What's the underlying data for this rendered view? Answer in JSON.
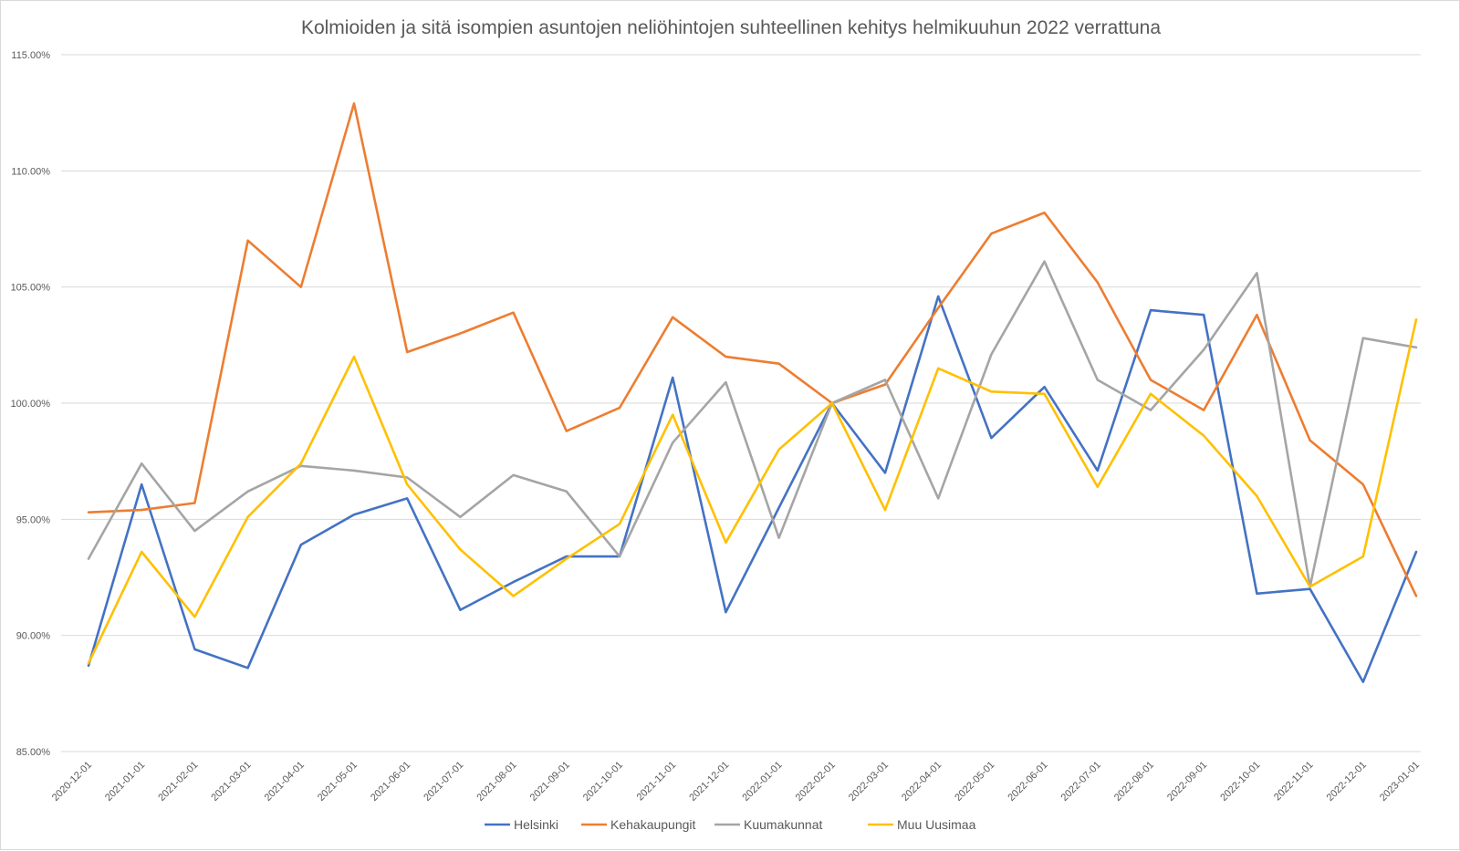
{
  "chart_data": {
    "type": "line",
    "title": "Kolmioiden ja sitä isompien asuntojen neliöhintojen suhteellinen kehitys helmikuuhun 2022 verrattuna",
    "xlabel": "",
    "ylabel": "",
    "ylim": [
      85,
      115
    ],
    "yticks": [
      "85.00%",
      "90.00%",
      "95.00%",
      "100.00%",
      "105.00%",
      "110.00%",
      "115.00%"
    ],
    "ytick_values": [
      85,
      90,
      95,
      100,
      105,
      110,
      115
    ],
    "grid": "horizontal",
    "legend_position": "bottom",
    "categories": [
      "2020-12-01",
      "2021-01-01",
      "2021-02-01",
      "2021-03-01",
      "2021-04-01",
      "2021-05-01",
      "2021-06-01",
      "2021-07-01",
      "2021-08-01",
      "2021-09-01",
      "2021-10-01",
      "2021-11-01",
      "2021-12-01",
      "2022-01-01",
      "2022-02-01",
      "2022-03-01",
      "2022-04-01",
      "2022-05-01",
      "2022-06-01",
      "2022-07-01",
      "2022-08-01",
      "2022-09-01",
      "2022-10-01",
      "2022-11-01",
      "2022-12-01",
      "2023-01-01"
    ],
    "series": [
      {
        "name": "Helsinki",
        "color": "#4472c4",
        "values": [
          88.7,
          96.5,
          89.4,
          88.6,
          93.9,
          95.2,
          95.9,
          91.1,
          92.3,
          93.4,
          93.4,
          101.1,
          91.0,
          95.5,
          100.0,
          97.0,
          104.6,
          98.5,
          100.7,
          97.1,
          104.0,
          103.8,
          91.8,
          92.0,
          88.0,
          93.6
        ]
      },
      {
        "name": "Kehakaupungit",
        "color": "#ed7d31",
        "values": [
          95.3,
          95.4,
          95.7,
          107.0,
          105.0,
          112.9,
          102.2,
          103.0,
          103.9,
          98.8,
          99.8,
          103.7,
          102.0,
          101.7,
          100.0,
          100.8,
          104.1,
          107.3,
          108.2,
          105.2,
          101.0,
          99.7,
          103.8,
          98.4,
          96.5,
          91.7
        ]
      },
      {
        "name": "Kuumakunnat",
        "color": "#a5a5a5",
        "values": [
          93.3,
          97.4,
          94.5,
          96.2,
          97.3,
          97.1,
          96.8,
          95.1,
          96.9,
          96.2,
          93.4,
          98.3,
          100.9,
          94.2,
          100.0,
          101.0,
          95.9,
          102.1,
          106.1,
          101.0,
          99.7,
          102.3,
          105.6,
          92.1,
          102.8,
          102.4
        ]
      },
      {
        "name": "Muu Uusimaa",
        "color": "#ffc000",
        "values": [
          88.8,
          93.6,
          90.8,
          95.1,
          97.4,
          102.0,
          96.5,
          93.7,
          91.7,
          93.3,
          94.8,
          99.5,
          94.0,
          98.0,
          100.0,
          95.4,
          101.5,
          100.5,
          100.4,
          96.4,
          100.4,
          98.6,
          96.0,
          92.1,
          93.4,
          103.6
        ]
      }
    ]
  }
}
